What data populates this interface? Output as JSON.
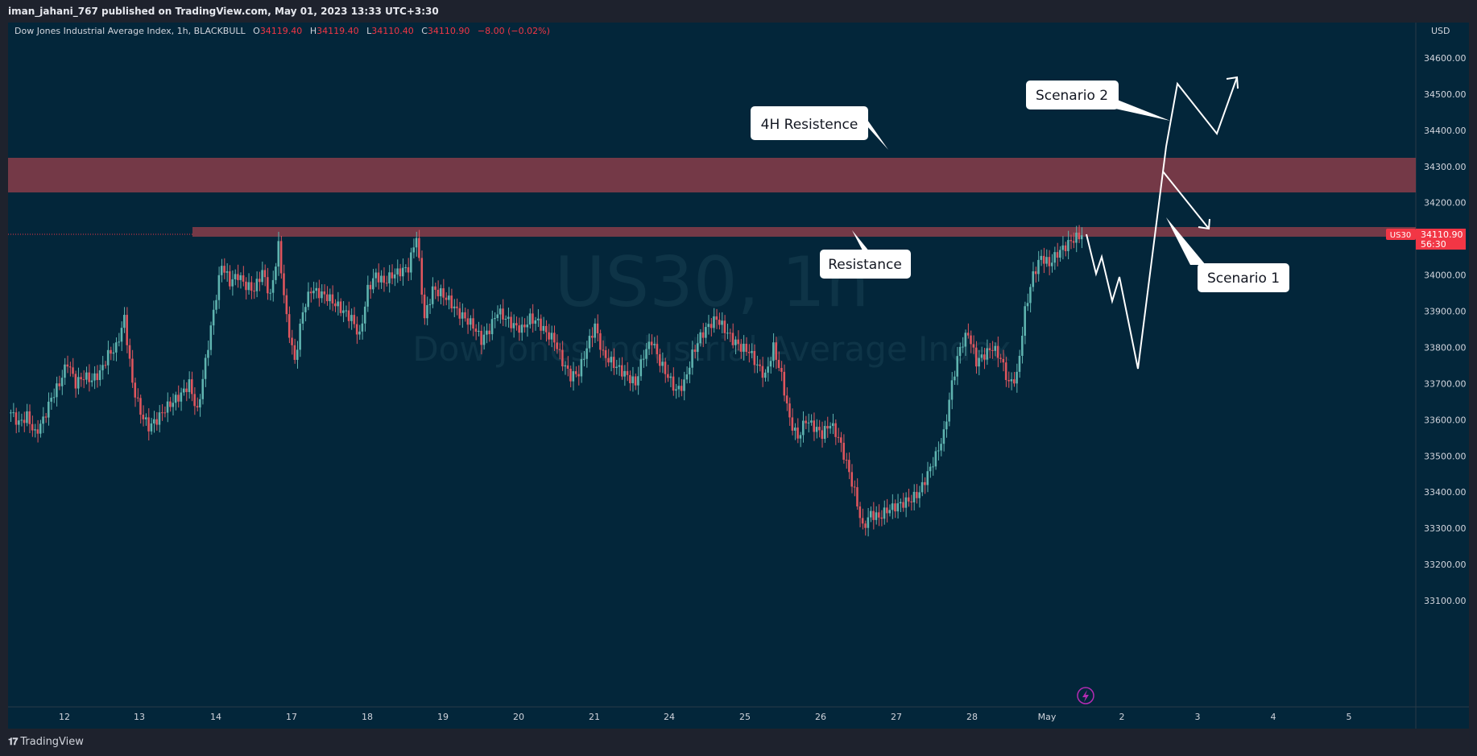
{
  "header": {
    "published": "iman_jahani_767 published on TradingView.com, May 01, 2023 13:33 UTC+3:30"
  },
  "legend": {
    "symbol_desc": "Dow Jones Industrial Average Index, 1h, BLACKBULL",
    "o_label": "O",
    "o_value": "34119.40",
    "h_label": "H",
    "h_value": "34119.40",
    "l_label": "L",
    "l_value": "34110.40",
    "c_label": "C",
    "c_value": "34110.90",
    "change": "−8.00 (−0.02%)"
  },
  "watermark": {
    "ticker": "US30, 1h",
    "name": "Dow Jones Industrial Average Index"
  },
  "price_axis": {
    "currency": "USD",
    "ticks": [
      "34600.00",
      "34500.00",
      "34400.00",
      "34300.00",
      "34200.00",
      "34100.00",
      "34000.00",
      "33900.00",
      "33800.00",
      "33700.00",
      "33600.00",
      "33500.00",
      "33400.00",
      "33300.00",
      "33200.00",
      "33100.00"
    ],
    "symbol_tag": "US30",
    "last_price": "34110.90",
    "countdown": "56:30"
  },
  "time_axis": {
    "labels": [
      "12",
      "13",
      "14",
      "17",
      "18",
      "19",
      "20",
      "21",
      "24",
      "25",
      "26",
      "27",
      "28",
      "May",
      "2",
      "3",
      "4",
      "5"
    ]
  },
  "annotations": {
    "resistance_4h": "4H Resistence",
    "resistance": "Resistance",
    "scenario_1": "Scenario 1",
    "scenario_2": "Scenario 2"
  },
  "footer": {
    "brand": "TradingView"
  },
  "colors": {
    "background": "#03263a",
    "up": "#5fb4b0",
    "down": "#e0565e",
    "zone": "#7a3a48",
    "label_bg": "#ffffff",
    "price_tag": "#f23645"
  },
  "chart_data": {
    "type": "candlestick",
    "timeframe": "1h",
    "ylim": [
      33100,
      34650
    ],
    "x_categories": [
      "12",
      "13",
      "14",
      "17",
      "18",
      "19",
      "20",
      "21",
      "24",
      "25",
      "26",
      "27",
      "28",
      "May",
      "2",
      "3",
      "4",
      "5"
    ],
    "close_path": [
      {
        "session": "12",
        "points": [
          33620,
          33590,
          33610,
          33560,
          33600,
          33660,
          33700,
          33760,
          33700,
          33720,
          33710,
          33730,
          33780
        ]
      },
      {
        "session": "13",
        "points": [
          33800,
          33880,
          33700,
          33620,
          33580,
          33600,
          33630,
          33650,
          33670,
          33700,
          33620
        ]
      },
      {
        "session": "14",
        "points": [
          33760,
          33900,
          34030,
          33980,
          34000,
          33970,
          33960,
          34010,
          33940
        ]
      },
      {
        "session": "17",
        "points": [
          34080,
          33880,
          33760,
          33900,
          33960,
          33950,
          33940,
          33920,
          33900,
          33880,
          33830
        ]
      },
      {
        "session": "18",
        "points": [
          33960,
          34000,
          33980,
          34000,
          34010,
          34020,
          34110,
          33880
        ]
      },
      {
        "session": "19",
        "points": [
          33960,
          33950,
          33930,
          33900,
          33880,
          33860,
          33820,
          33850,
          33900,
          33880
        ]
      },
      {
        "session": "20",
        "points": [
          33860,
          33850,
          33880,
          33870,
          33840,
          33820,
          33760,
          33720
        ]
      },
      {
        "session": "21",
        "points": [
          33730,
          33800,
          33860,
          33780,
          33760,
          33740,
          33720,
          33700
        ]
      },
      {
        "session": "24",
        "points": [
          33780,
          33820,
          33760,
          33720,
          33680,
          33700,
          33780,
          33830
        ]
      },
      {
        "session": "25",
        "points": [
          33860,
          33880,
          33850,
          33820,
          33800,
          33790,
          33750,
          33720,
          33800,
          33720
        ]
      },
      {
        "session": "26",
        "points": [
          33600,
          33550,
          33600,
          33580,
          33560,
          33590,
          33550,
          33480,
          33400,
          33300
        ]
      },
      {
        "session": "27",
        "points": [
          33340,
          33330,
          33350,
          33360,
          33370,
          33380,
          33400,
          33450,
          33500,
          33560
        ]
      },
      {
        "session": "28",
        "points": [
          33700,
          33800,
          33840,
          33760,
          33780,
          33800,
          33770,
          33700,
          33720
        ]
      },
      {
        "session": "May",
        "points": [
          33900,
          34000,
          34050,
          34030,
          34060,
          34080,
          34100,
          34110
        ]
      }
    ],
    "horizontal_zones": [
      {
        "label": "4H Resistence",
        "from": 34290,
        "to": 34385
      },
      {
        "label": "Resistance",
        "from": 34100,
        "to": 34130
      }
    ],
    "last_price": 34110.9
  }
}
